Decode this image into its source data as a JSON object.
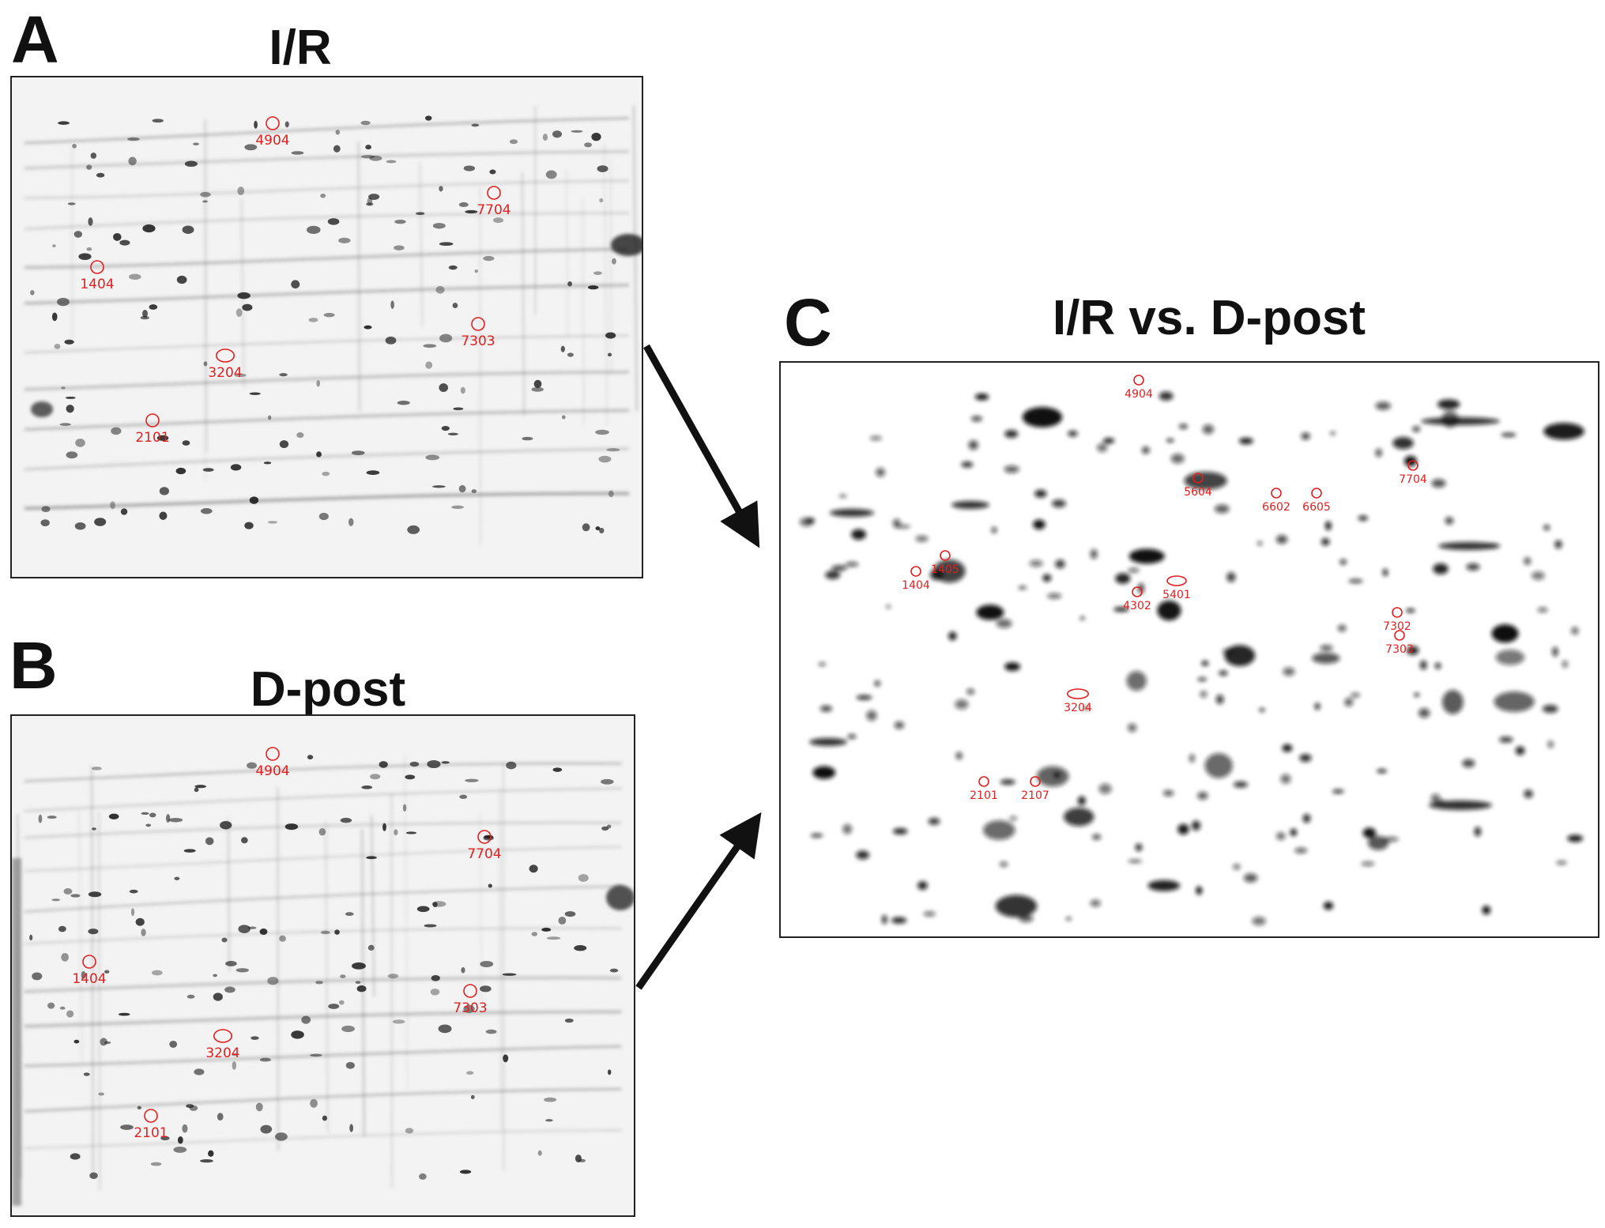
{
  "figure": {
    "panels": [
      {
        "id": "A",
        "letter": "A",
        "title": "I/R",
        "spots": [
          "4904",
          "7704",
          "1404",
          "7303",
          "3204",
          "2101"
        ]
      },
      {
        "id": "B",
        "letter": "B",
        "title": "D-post",
        "spots": [
          "4904",
          "7704",
          "1404",
          "7303",
          "3204",
          "2101"
        ]
      },
      {
        "id": "C",
        "letter": "C",
        "title": "I/R vs. D-post",
        "spots": [
          "4904",
          "5604",
          "6602",
          "6605",
          "7704",
          "1405",
          "1404",
          "5401",
          "4302",
          "7302",
          "7303",
          "3204",
          "2101",
          "2107"
        ]
      }
    ],
    "colors": {
      "annotation": "#e02020",
      "text": "#111111",
      "gel_background": "#f3f3f3",
      "spot": "#1a1a1a"
    }
  }
}
